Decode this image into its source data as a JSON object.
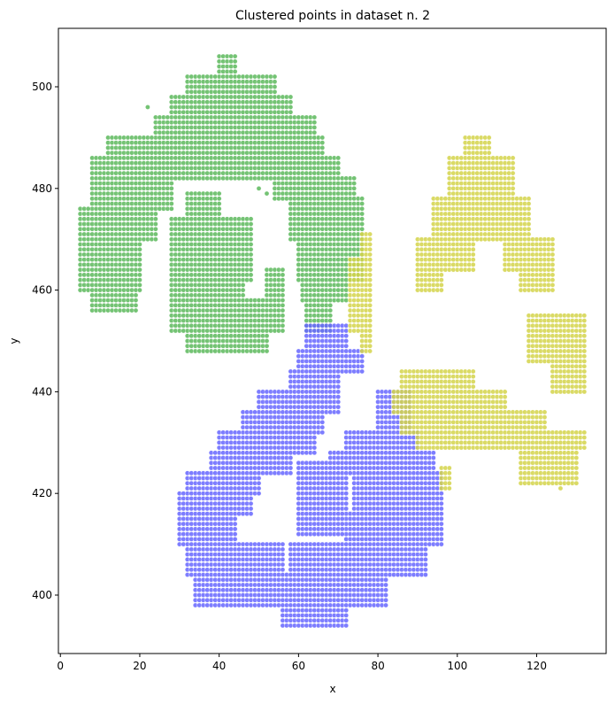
{
  "chart_data": {
    "type": "scatter",
    "title": "Clustered points in dataset n. 2",
    "xlabel": "x",
    "ylabel": "y",
    "xlim": [
      -0.5,
      137.5
    ],
    "ylim": [
      388.5,
      511.5
    ],
    "xticks": [
      0,
      20,
      40,
      60,
      80,
      100,
      120
    ],
    "yticks": [
      400,
      420,
      440,
      460,
      480,
      500
    ],
    "grid": false,
    "legend": "none",
    "marker_spacing": 1,
    "series": [
      {
        "color": "#5cb85c",
        "regions": [
          {
            "x": [
              40,
              44
            ],
            "y": [
              501,
              506
            ]
          },
          {
            "x": [
              32,
              54
            ],
            "y": [
              497,
              502
            ]
          },
          {
            "x": [
              28,
              58
            ],
            "y": [
              493,
              498
            ]
          },
          {
            "x": [
              24,
              64
            ],
            "y": [
              490,
              494
            ]
          },
          {
            "x": [
              12,
              66
            ],
            "y": [
              486,
              490
            ]
          },
          {
            "x": [
              8,
              70
            ],
            "y": [
              482,
              486
            ]
          },
          {
            "x": [
              8,
              28
            ],
            "y": [
              476,
              482
            ]
          },
          {
            "x": [
              54,
              74
            ],
            "y": [
              478,
              482
            ]
          },
          {
            "x": [
              5,
              24
            ],
            "y": [
              470,
              476
            ]
          },
          {
            "x": [
              58,
              76
            ],
            "y": [
              470,
              478
            ]
          },
          {
            "x": [
              5,
              20
            ],
            "y": [
              460,
              470
            ]
          },
          {
            "x": [
              60,
              76
            ],
            "y": [
              462,
              470
            ]
          },
          {
            "x": [
              8,
              19
            ],
            "y": [
              456,
              460
            ]
          },
          {
            "x": [
              61,
              72
            ],
            "y": [
              458,
              462
            ]
          },
          {
            "x": [
              62,
              68
            ],
            "y": [
              452,
              458
            ]
          },
          {
            "x": [
              32,
              40
            ],
            "y": [
              474,
              479
            ]
          },
          {
            "x": [
              28,
              48
            ],
            "y": [
              462,
              474
            ]
          },
          {
            "x": [
              28,
              46
            ],
            "y": [
              458,
              462
            ]
          },
          {
            "x": [
              52,
              56
            ],
            "y": [
              458,
              464
            ]
          },
          {
            "x": [
              28,
              56
            ],
            "y": [
              452,
              458
            ]
          },
          {
            "x": [
              32,
              52
            ],
            "y": [
              448,
              452
            ]
          }
        ],
        "points": [
          [
            22,
            496
          ],
          [
            34,
            496
          ],
          [
            36,
            495
          ],
          [
            52,
            479
          ],
          [
            51,
            482
          ],
          [
            50,
            480
          ]
        ]
      },
      {
        "color": "#6666ff",
        "regions": [
          {
            "x": [
              62,
              72
            ],
            "y": [
              448,
              453
            ]
          },
          {
            "x": [
              60,
              76
            ],
            "y": [
              444,
              448
            ]
          },
          {
            "x": [
              58,
              70
            ],
            "y": [
              440,
              444
            ]
          },
          {
            "x": [
              50,
              70
            ],
            "y": [
              436,
              440
            ]
          },
          {
            "x": [
              46,
              66
            ],
            "y": [
              432,
              436
            ]
          },
          {
            "x": [
              40,
              64
            ],
            "y": [
              428,
              432
            ]
          },
          {
            "x": [
              38,
              58
            ],
            "y": [
              424,
              428
            ]
          },
          {
            "x": [
              32,
              50
            ],
            "y": [
              420,
              424
            ]
          },
          {
            "x": [
              30,
              48
            ],
            "y": [
              416,
              420
            ]
          },
          {
            "x": [
              30,
              44
            ],
            "y": [
              410,
              416
            ]
          },
          {
            "x": [
              32,
              56
            ],
            "y": [
              404,
              410
            ]
          },
          {
            "x": [
              34,
              82
            ],
            "y": [
              398,
              404
            ]
          },
          {
            "x": [
              56,
              72
            ],
            "y": [
              394,
              398
            ]
          },
          {
            "x": [
              58,
              92
            ],
            "y": [
              404,
              410
            ]
          },
          {
            "x": [
              72,
              96
            ],
            "y": [
              410,
              416
            ]
          },
          {
            "x": [
              74,
              96
            ],
            "y": [
              416,
              424
            ]
          },
          {
            "x": [
              60,
              72
            ],
            "y": [
              412,
              426
            ]
          },
          {
            "x": [
              68,
              94
            ],
            "y": [
              424,
              428
            ]
          },
          {
            "x": [
              72,
              90
            ],
            "y": [
              428,
              432
            ]
          },
          {
            "x": [
              80,
              88
            ],
            "y": [
              432,
              440
            ]
          }
        ],
        "points": []
      },
      {
        "color": "#d4d44a",
        "regions": [
          {
            "x": [
              76,
              78
            ],
            "y": [
              448,
              471
            ]
          },
          {
            "x": [
              73,
              76
            ],
            "y": [
              452,
              466
            ]
          },
          {
            "x": [
              102,
              108
            ],
            "y": [
              486,
              490
            ]
          },
          {
            "x": [
              98,
              114
            ],
            "y": [
              478,
              486
            ]
          },
          {
            "x": [
              94,
              118
            ],
            "y": [
              470,
              478
            ]
          },
          {
            "x": [
              90,
              104
            ],
            "y": [
              464,
              470
            ]
          },
          {
            "x": [
              112,
              124
            ],
            "y": [
              464,
              470
            ]
          },
          {
            "x": [
              90,
              96
            ],
            "y": [
              460,
              464
            ]
          },
          {
            "x": [
              116,
              124
            ],
            "y": [
              460,
              464
            ]
          },
          {
            "x": [
              118,
              132
            ],
            "y": [
              446,
              455
            ]
          },
          {
            "x": [
              124,
              132
            ],
            "y": [
              440,
              446
            ]
          },
          {
            "x": [
              86,
              104
            ],
            "y": [
              440,
              444
            ]
          },
          {
            "x": [
              84,
              112
            ],
            "y": [
              436,
              440
            ]
          },
          {
            "x": [
              86,
              122
            ],
            "y": [
              432,
              436
            ]
          },
          {
            "x": [
              90,
              132
            ],
            "y": [
              429,
              432
            ]
          },
          {
            "x": [
              116,
              130
            ],
            "y": [
              422,
              429
            ]
          },
          {
            "x": [
              96,
              98
            ],
            "y": [
              421,
              425
            ]
          }
        ],
        "points": [
          [
            92,
            461
          ],
          [
            94,
            461
          ],
          [
            126,
            421
          ]
        ]
      }
    ]
  }
}
